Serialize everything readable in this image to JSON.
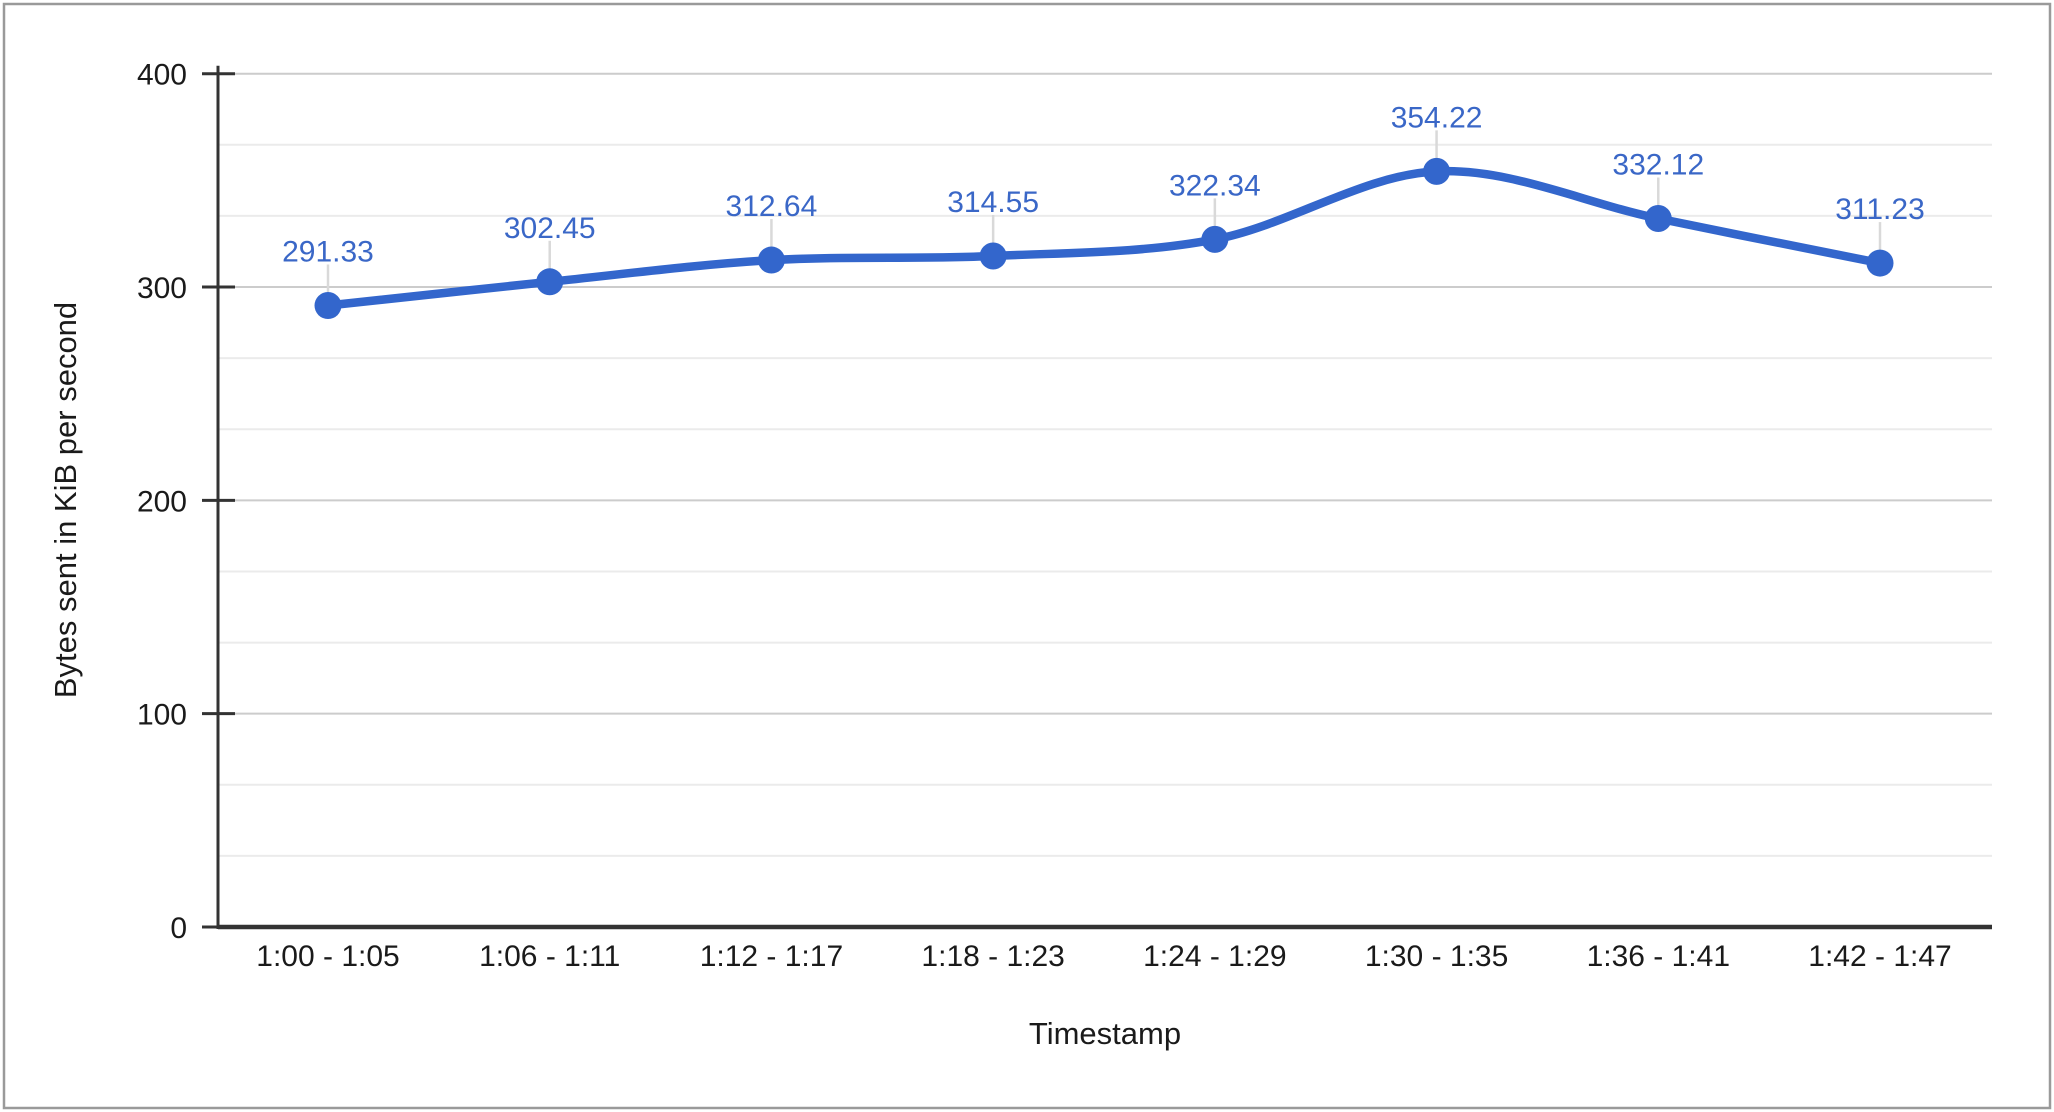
{
  "window": {
    "background": "#ffffff",
    "border_color": "#9a9a9a"
  },
  "chart_data": {
    "type": "line",
    "title": "",
    "xlabel": "Timestamp",
    "ylabel": "Bytes sent in KiB per second",
    "categories": [
      "1:00 - 1:05",
      "1:06 - 1:11",
      "1:12 - 1:17",
      "1:18 - 1:23",
      "1:24 - 1:29",
      "1:30 - 1:35",
      "1:36 - 1:41",
      "1:42 - 1:47"
    ],
    "values": [
      291.33,
      302.45,
      312.64,
      314.55,
      322.34,
      354.22,
      332.12,
      311.23
    ],
    "data_label_decimals": 2,
    "ylim": [
      0,
      400
    ],
    "yticks": [
      0,
      100,
      200,
      300,
      400
    ],
    "minor_grid_divisions": 3,
    "grid": true,
    "legend": "none",
    "smooth": true,
    "colors": {
      "series": "#3366cc",
      "data_label_text": "#3a67c7",
      "major_grid": "#cccccc",
      "minor_grid": "#ebebeb",
      "label_stem": "#d9d9d9",
      "axis_line": "#333333",
      "tick_text": "#1a1a1a"
    }
  }
}
